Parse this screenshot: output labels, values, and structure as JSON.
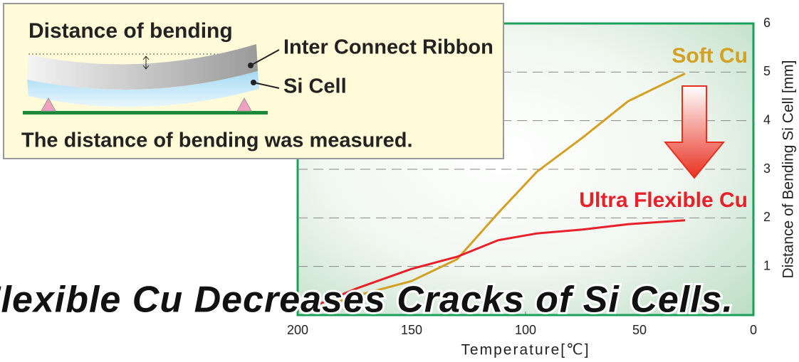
{
  "chart_data": {
    "type": "line",
    "x_label": "Temperature[℃]",
    "y_label": "Distance of Bending Si Cell [mm]",
    "x": [
      196,
      174,
      150,
      130,
      112,
      95,
      75,
      55,
      30
    ],
    "series": [
      {
        "name": "Soft Cu",
        "color": "#d4a022",
        "values": [
          0.07,
          0.4,
          0.7,
          1.15,
          2.1,
          2.95,
          3.65,
          4.4,
          4.97
        ]
      },
      {
        "name": "Ultra Flexible Cu",
        "color": "#e8202a",
        "values": [
          0.12,
          0.55,
          0.95,
          1.2,
          1.54,
          1.68,
          1.76,
          1.87,
          1.95
        ]
      }
    ],
    "xlim": [
      200,
      0
    ],
    "xticks": [
      200,
      150,
      100,
      50,
      0
    ],
    "ylim": [
      0,
      6
    ],
    "yticks": [
      1,
      2,
      3,
      4,
      5,
      6
    ],
    "grid": true,
    "banner": "a Flexible Cu Decreases Cracks of Si Cells.",
    "inset": {
      "title": "Distance of bending",
      "ribbon": "Inter Connect Ribbon",
      "cell": "Si Cell",
      "caption": "The distance of bending was measured."
    }
  }
}
